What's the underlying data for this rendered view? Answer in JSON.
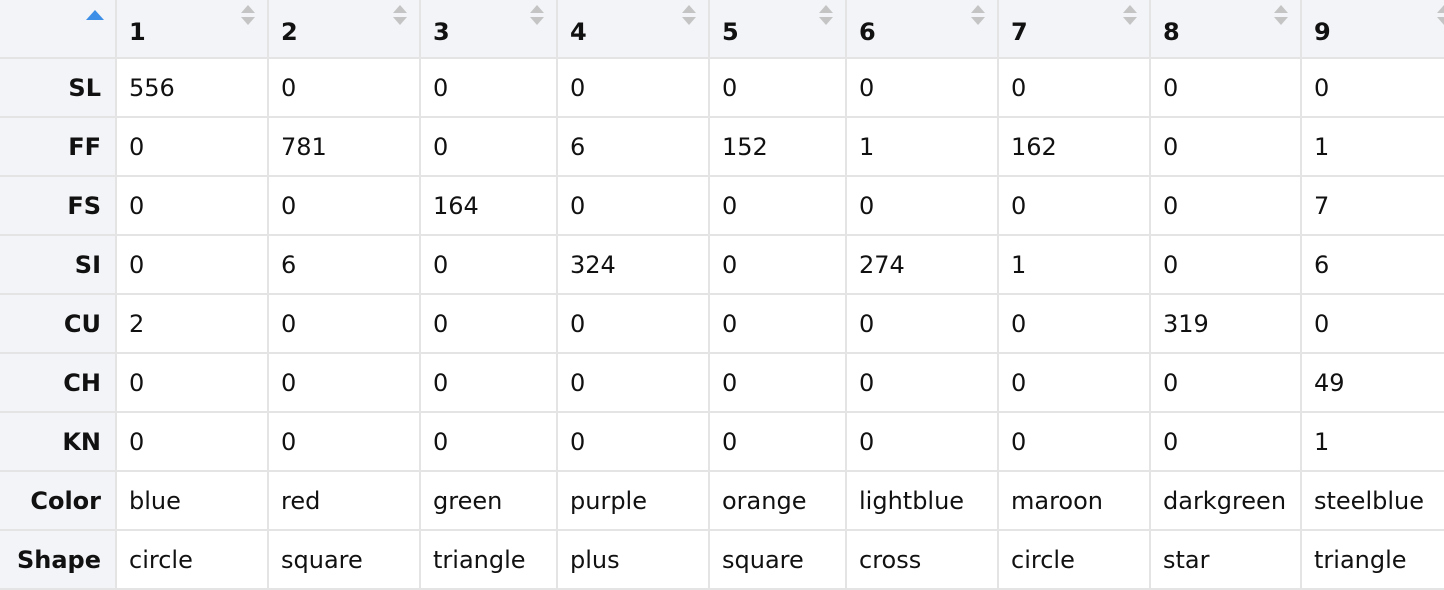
{
  "columns": [
    "1",
    "2",
    "3",
    "4",
    "5",
    "6",
    "7",
    "8",
    "9"
  ],
  "rows": [
    {
      "label": "SL",
      "cells": [
        "556",
        "0",
        "0",
        "0",
        "0",
        "0",
        "0",
        "0",
        "0"
      ]
    },
    {
      "label": "FF",
      "cells": [
        "0",
        "781",
        "0",
        "6",
        "152",
        "1",
        "162",
        "0",
        "1"
      ]
    },
    {
      "label": "FS",
      "cells": [
        "0",
        "0",
        "164",
        "0",
        "0",
        "0",
        "0",
        "0",
        "7"
      ]
    },
    {
      "label": "SI",
      "cells": [
        "0",
        "6",
        "0",
        "324",
        "0",
        "274",
        "1",
        "0",
        "6"
      ]
    },
    {
      "label": "CU",
      "cells": [
        "2",
        "0",
        "0",
        "0",
        "0",
        "0",
        "0",
        "319",
        "0"
      ]
    },
    {
      "label": "CH",
      "cells": [
        "0",
        "0",
        "0",
        "0",
        "0",
        "0",
        "0",
        "0",
        "49"
      ]
    },
    {
      "label": "KN",
      "cells": [
        "0",
        "0",
        "0",
        "0",
        "0",
        "0",
        "0",
        "0",
        "1"
      ]
    },
    {
      "label": "Color",
      "cells": [
        "blue",
        "red",
        "green",
        "purple",
        "orange",
        "lightblue",
        "maroon",
        "darkgreen",
        "steelblue"
      ]
    },
    {
      "label": "Shape",
      "cells": [
        "circle",
        "square",
        "triangle",
        "plus",
        "square",
        "cross",
        "circle",
        "star",
        "triangle"
      ]
    }
  ],
  "icons": {
    "sort_active": "sort-ascending-icon",
    "sort_inactive": "sort-both-icon"
  },
  "colors": {
    "header_bg": "#f2f4f7",
    "border": "#e4e4e4",
    "sort_active": "#3d8ee6",
    "sort_inactive": "#c4c4c4"
  }
}
